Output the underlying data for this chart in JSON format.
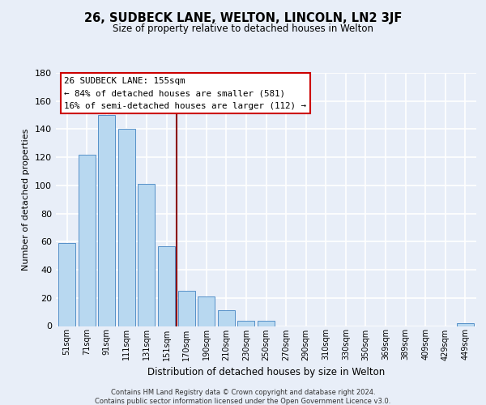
{
  "title": "26, SUDBECK LANE, WELTON, LINCOLN, LN2 3JF",
  "subtitle": "Size of property relative to detached houses in Welton",
  "xlabel": "Distribution of detached houses by size in Welton",
  "ylabel": "Number of detached properties",
  "bar_labels": [
    "51sqm",
    "71sqm",
    "91sqm",
    "111sqm",
    "131sqm",
    "151sqm",
    "170sqm",
    "190sqm",
    "210sqm",
    "230sqm",
    "250sqm",
    "270sqm",
    "290sqm",
    "310sqm",
    "330sqm",
    "350sqm",
    "369sqm",
    "389sqm",
    "409sqm",
    "429sqm",
    "449sqm"
  ],
  "bar_heights": [
    59,
    122,
    150,
    140,
    101,
    57,
    25,
    21,
    11,
    4,
    4,
    0,
    0,
    0,
    0,
    0,
    0,
    0,
    0,
    0,
    2
  ],
  "bar_color": "#b8d8f0",
  "bar_edge_color": "#5590c8",
  "vline_x": 5.5,
  "vline_color": "#8b0000",
  "annotation_title": "26 SUDBECK LANE: 155sqm",
  "annotation_line1": "← 84% of detached houses are smaller (581)",
  "annotation_line2": "16% of semi-detached houses are larger (112) →",
  "annotation_box_color": "#ffffff",
  "annotation_box_edge": "#cc0000",
  "ylim": [
    0,
    180
  ],
  "yticks": [
    0,
    20,
    40,
    60,
    80,
    100,
    120,
    140,
    160,
    180
  ],
  "footer_line1": "Contains HM Land Registry data © Crown copyright and database right 2024.",
  "footer_line2": "Contains public sector information licensed under the Open Government Licence v3.0.",
  "bg_color": "#e8eef8"
}
